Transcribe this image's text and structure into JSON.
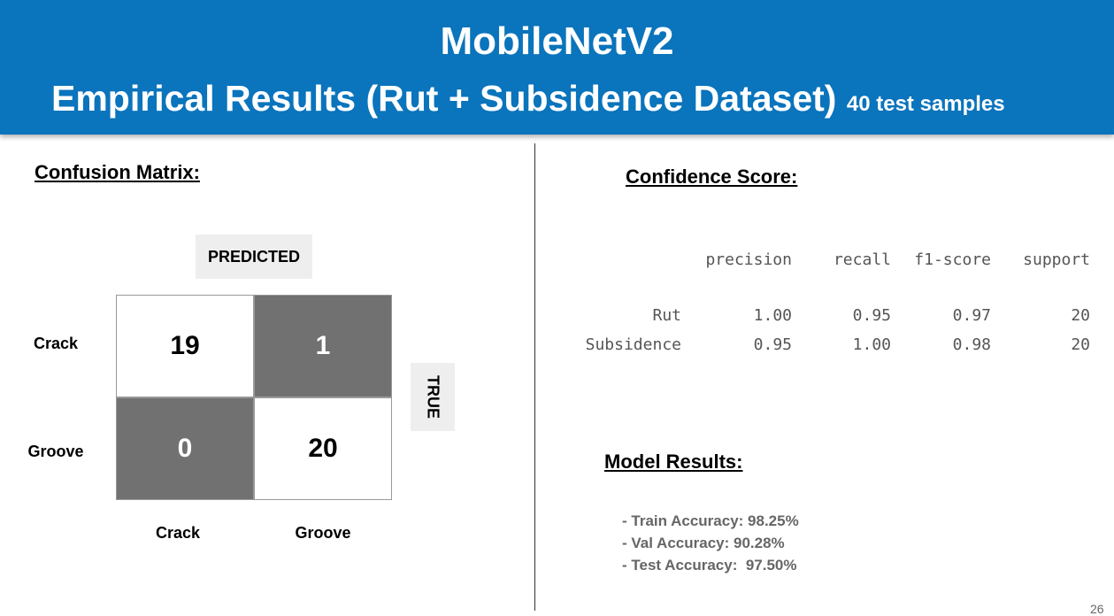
{
  "header": {
    "title": "MobileNetV2",
    "subtitle": "Empirical Results (Rut + Subsidence Dataset)",
    "note": "40 test samples"
  },
  "confusion_matrix": {
    "heading": "Confusion Matrix:",
    "predicted_label": "PREDICTED",
    "true_label": "TRUE",
    "row_labels": [
      "Crack",
      "Groove"
    ],
    "col_labels": [
      "Crack",
      "Groove"
    ],
    "cells": [
      [
        19,
        1
      ],
      [
        0,
        20
      ]
    ]
  },
  "confidence": {
    "heading": "Confidence Score:",
    "columns": [
      "precision",
      "recall",
      "f1-score",
      "support"
    ],
    "rows": [
      {
        "label": "Rut",
        "values": [
          "1.00",
          "0.95",
          "0.97",
          "20"
        ]
      },
      {
        "label": "Subsidence",
        "values": [
          "0.95",
          "1.00",
          "0.98",
          "20"
        ]
      }
    ]
  },
  "model_results": {
    "heading": "Model Results:",
    "items": [
      "- Train Accuracy: 98.25%",
      "- Val Accuracy: 90.28%",
      "- Test Accuracy:  97.50%"
    ]
  },
  "page_number": "26"
}
